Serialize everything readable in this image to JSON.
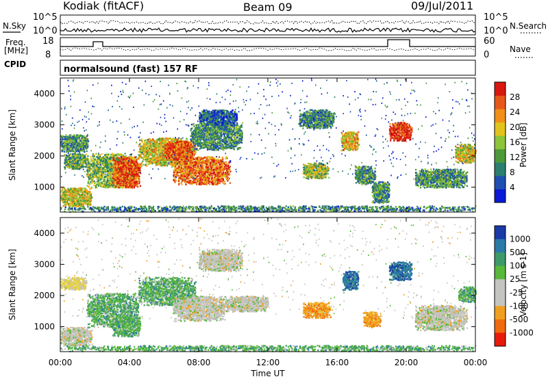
{
  "header": {
    "station": "Kodiak (fitACF)",
    "beam": "Beam 09",
    "date": "09/Jul/2011",
    "mode": "normalsound (fast) 157 RF"
  },
  "panel_labels": {
    "nsky": "N.Sky",
    "nsearch": "N.Search",
    "freq_top": "Freq.",
    "freq_unit": "[MHz]",
    "nave": "Nave",
    "cpid": "CPID",
    "noise_tick_hi": "10^5",
    "noise_tick_lo": "10^0",
    "freq_ticks": [
      "18",
      "8"
    ],
    "nave_ticks": [
      "60",
      "0"
    ]
  },
  "chart_data": [
    {
      "type": "heatmap",
      "title": "",
      "xlabel": "Time UT",
      "ylabel": "Slant Range [km]",
      "colorbar_label": "Power [dB]",
      "x_ticks": [
        "00:00",
        "04:00",
        "08:00",
        "12:00",
        "16:00",
        "20:00",
        "00:00"
      ],
      "y_ticks": [
        1000,
        2000,
        3000,
        4000
      ],
      "ylim": [
        200,
        4500
      ],
      "xlim_hours": [
        0,
        24
      ],
      "colorbar_ticks": [
        "4",
        "8",
        "12",
        "16",
        "20",
        "24",
        "28"
      ],
      "colorbar_colors": [
        "#0a1ad6",
        "#1f4fb0",
        "#2b7f6e",
        "#4c9a3a",
        "#8cc43a",
        "#e2c21c",
        "#f09018",
        "#e6581a",
        "#d8180e"
      ],
      "clusters": [
        {
          "t": [
            0.0,
            1.6
          ],
          "r": [
            2150,
            2700
          ],
          "level": 0.35
        },
        {
          "t": [
            0.0,
            1.8
          ],
          "r": [
            400,
            1000
          ],
          "level": 0.55
        },
        {
          "t": [
            0.2,
            1.6
          ],
          "r": [
            1600,
            2100
          ],
          "level": 0.4
        },
        {
          "t": [
            1.5,
            4.4
          ],
          "r": [
            1000,
            2100
          ],
          "level": 0.45
        },
        {
          "t": [
            3.0,
            4.6
          ],
          "r": [
            1000,
            2000
          ],
          "level": 0.85
        },
        {
          "t": [
            4.5,
            7.6
          ],
          "r": [
            1700,
            2600
          ],
          "level": 0.6
        },
        {
          "t": [
            6.0,
            7.8
          ],
          "r": [
            1900,
            2500
          ],
          "level": 0.85
        },
        {
          "t": [
            6.5,
            9.8
          ],
          "r": [
            1100,
            2000
          ],
          "level": 0.8
        },
        {
          "t": [
            7.5,
            10.5
          ],
          "r": [
            2200,
            3100
          ],
          "level": 0.35
        },
        {
          "t": [
            8.0,
            10.2
          ],
          "r": [
            3000,
            3500
          ],
          "level": 0.2
        },
        {
          "t": [
            13.8,
            15.8
          ],
          "r": [
            2900,
            3500
          ],
          "level": 0.3
        },
        {
          "t": [
            14.0,
            15.5
          ],
          "r": [
            1300,
            1800
          ],
          "level": 0.5
        },
        {
          "t": [
            16.2,
            17.2
          ],
          "r": [
            2200,
            2800
          ],
          "level": 0.65
        },
        {
          "t": [
            17.0,
            18.2
          ],
          "r": [
            1100,
            1700
          ],
          "level": 0.35
        },
        {
          "t": [
            18.0,
            19.0
          ],
          "r": [
            500,
            1200
          ],
          "level": 0.35
        },
        {
          "t": [
            19.0,
            20.3
          ],
          "r": [
            2500,
            3100
          ],
          "level": 0.95
        },
        {
          "t": [
            20.5,
            23.5
          ],
          "r": [
            1000,
            1600
          ],
          "level": 0.35
        },
        {
          "t": [
            22.8,
            24.0
          ],
          "r": [
            1800,
            2400
          ],
          "level": 0.6
        },
        {
          "t": [
            0.0,
            24.0
          ],
          "r": [
            230,
            420
          ],
          "level": 0.3
        }
      ]
    },
    {
      "type": "heatmap",
      "title": "",
      "xlabel": "Time UT",
      "ylabel": "Slant Range [km]",
      "colorbar_label": "Velocity [m s-1]",
      "x_ticks": [
        "00:00",
        "04:00",
        "08:00",
        "12:00",
        "16:00",
        "20:00",
        "00:00"
      ],
      "y_ticks": [
        1000,
        2000,
        3000,
        4000
      ],
      "ylim": [
        200,
        4500
      ],
      "xlim_hours": [
        0,
        24
      ],
      "colorbar_ticks": [
        "1000",
        "500",
        "100",
        "25",
        "-25",
        "-100",
        "-500",
        "-1000"
      ],
      "colorbar_colors": [
        "#1a3aa8",
        "#2a7aa8",
        "#3d9a68",
        "#58b83a",
        "#c4c4c0",
        "#c4c4c0",
        "#f0a020",
        "#f06a10",
        "#e81a0a"
      ],
      "clusters": [
        {
          "t": [
            0.0,
            1.8
          ],
          "r": [
            400,
            1000
          ],
          "kind": "gray"
        },
        {
          "t": [
            0.0,
            1.5
          ],
          "r": [
            2200,
            2600
          ],
          "kind": "yellow"
        },
        {
          "t": [
            1.5,
            4.5
          ],
          "r": [
            1000,
            2100
          ],
          "kind": "green"
        },
        {
          "t": [
            3.0,
            4.6
          ],
          "r": [
            700,
            1400
          ],
          "kind": "green"
        },
        {
          "t": [
            4.5,
            7.8
          ],
          "r": [
            1700,
            2600
          ],
          "kind": "green"
        },
        {
          "t": [
            6.5,
            9.5
          ],
          "r": [
            1200,
            2000
          ],
          "kind": "gray"
        },
        {
          "t": [
            9.5,
            12.0
          ],
          "r": [
            1500,
            2000
          ],
          "kind": "gray"
        },
        {
          "t": [
            8.0,
            10.5
          ],
          "r": [
            2800,
            3500
          ],
          "kind": "gray"
        },
        {
          "t": [
            14.0,
            15.6
          ],
          "r": [
            1300,
            1800
          ],
          "kind": "orange"
        },
        {
          "t": [
            16.3,
            17.2
          ],
          "r": [
            2200,
            2800
          ],
          "kind": "blue"
        },
        {
          "t": [
            17.5,
            18.5
          ],
          "r": [
            1000,
            1500
          ],
          "kind": "orange"
        },
        {
          "t": [
            19.0,
            20.3
          ],
          "r": [
            2500,
            3100
          ],
          "kind": "blue"
        },
        {
          "t": [
            20.5,
            23.5
          ],
          "r": [
            900,
            1700
          ],
          "kind": "gray"
        },
        {
          "t": [
            23.0,
            24.0
          ],
          "r": [
            1800,
            2300
          ],
          "kind": "green"
        },
        {
          "t": [
            0.0,
            24.0
          ],
          "r": [
            230,
            420
          ],
          "kind": "green"
        }
      ]
    }
  ]
}
